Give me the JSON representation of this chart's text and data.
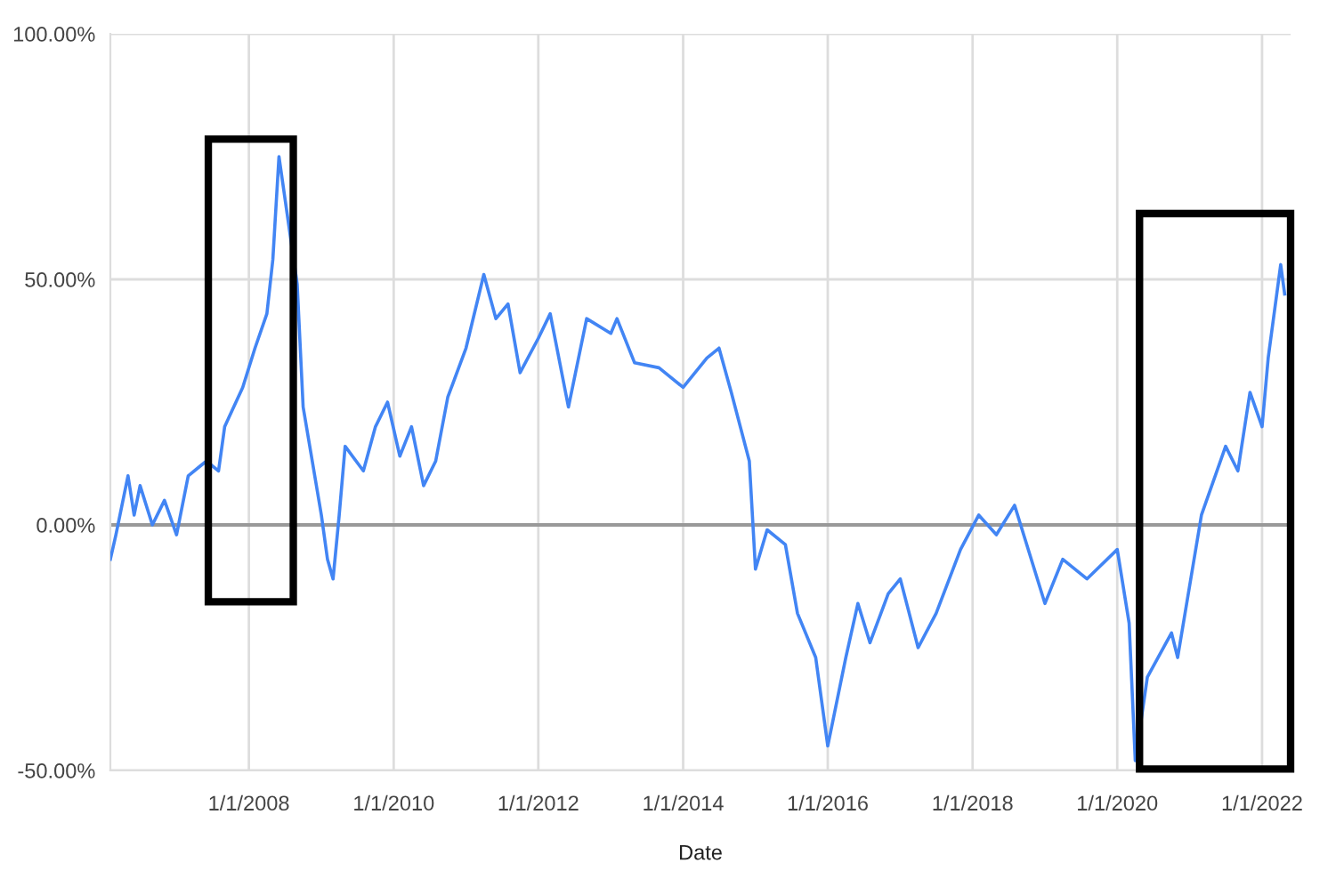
{
  "chart_data": {
    "type": "line",
    "xlabel": "Date",
    "x": [
      "2006-02",
      "2006-03",
      "2006-05",
      "2006-06",
      "2006-07",
      "2006-09",
      "2006-11",
      "2007-01",
      "2007-03",
      "2007-05",
      "2007-06",
      "2007-08",
      "2007-09",
      "2007-12",
      "2008-02",
      "2008-04",
      "2008-05",
      "2008-06",
      "2008-09",
      "2008-10",
      "2009-01",
      "2009-02",
      "2009-03",
      "2009-04",
      "2009-05",
      "2009-08",
      "2009-10",
      "2009-12",
      "2010-02",
      "2010-04",
      "2010-06",
      "2010-08",
      "2010-10",
      "2011-01",
      "2011-04",
      "2011-06",
      "2011-08",
      "2011-10",
      "2012-01",
      "2012-03",
      "2012-06",
      "2012-09",
      "2013-01",
      "2013-02",
      "2013-05",
      "2013-09",
      "2014-01",
      "2014-05",
      "2014-07",
      "2014-09",
      "2014-12",
      "2015-01",
      "2015-03",
      "2015-06",
      "2015-08",
      "2015-11",
      "2016-01",
      "2016-04",
      "2016-06",
      "2016-08",
      "2016-11",
      "2017-01",
      "2017-04",
      "2017-07",
      "2017-11",
      "2018-02",
      "2018-05",
      "2018-08",
      "2019-01",
      "2019-04",
      "2019-08",
      "2020-01",
      "2020-03",
      "2020-04",
      "2020-06",
      "2020-10",
      "2020-11",
      "2021-03",
      "2021-07",
      "2021-09",
      "2021-11",
      "2022-01",
      "2022-02",
      "2022-04-05",
      "2022-04-25"
    ],
    "series": [
      {
        "color": "#4285f4",
        "values": [
          -7,
          -2,
          10,
          2,
          8,
          0,
          5,
          -2,
          10,
          12,
          13,
          11,
          20,
          28,
          36,
          43,
          54,
          75,
          49,
          24,
          2,
          -7,
          -11,
          2,
          16,
          11,
          20,
          25,
          14,
          20,
          8,
          13,
          26,
          36,
          51,
          42,
          45,
          31,
          38,
          43,
          24,
          42,
          39,
          42,
          33,
          32,
          28,
          34,
          36,
          27,
          13,
          -9,
          -1,
          -4,
          -18,
          -27,
          -45,
          -27,
          -16,
          -24,
          -14,
          -11,
          -25,
          -18,
          -5,
          2,
          -2,
          4,
          -16,
          -7,
          -11,
          -5,
          -20,
          -48,
          -31,
          -22,
          -27,
          2,
          16,
          11,
          27,
          20,
          34,
          53,
          47
        ]
      }
    ],
    "xlim": [
      "2006-02",
      "2022-05-25"
    ],
    "xticks": [
      {
        "value": "2008-01-01",
        "label": "1/1/2008"
      },
      {
        "value": "2010-01-01",
        "label": "1/1/2010"
      },
      {
        "value": "2012-01-01",
        "label": "1/1/2012"
      },
      {
        "value": "2014-01-01",
        "label": "1/1/2014"
      },
      {
        "value": "2016-01-01",
        "label": "1/1/2016"
      },
      {
        "value": "2018-01-01",
        "label": "1/1/2018"
      },
      {
        "value": "2020-01-01",
        "label": "1/1/2020"
      },
      {
        "value": "2022-01-01",
        "label": "1/1/2022"
      }
    ],
    "ylim": [
      -50,
      100
    ],
    "yticks": [
      {
        "value": -50,
        "label": "-50.00%"
      },
      {
        "value": 0,
        "label": "0.00%"
      },
      {
        "value": 50,
        "label": "50.00%"
      },
      {
        "value": 100,
        "label": "100.00%"
      }
    ],
    "ref_lines": [
      {
        "axis": "y",
        "value": 0,
        "color": "#999999"
      }
    ],
    "grid": true,
    "legend": false,
    "marker": "none",
    "line_style": "solid"
  }
}
